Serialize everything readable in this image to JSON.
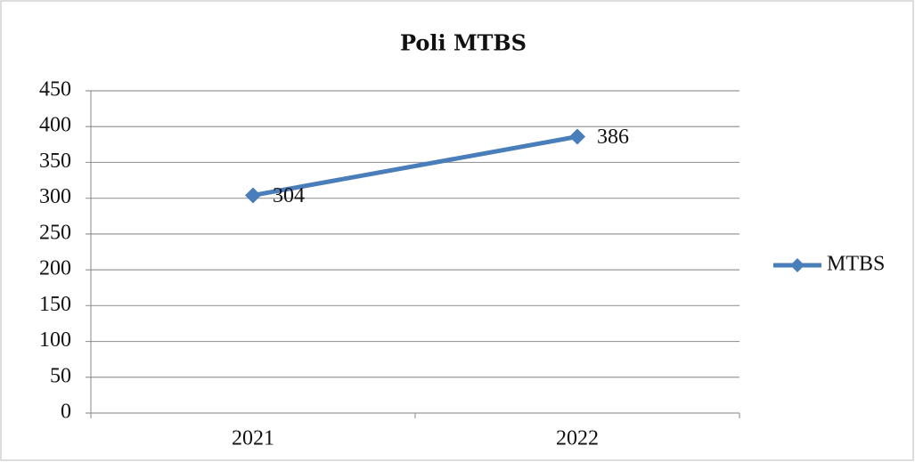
{
  "chart_data": {
    "type": "line",
    "title": "Poli MTBS",
    "categories": [
      "2021",
      "2022"
    ],
    "series": [
      {
        "name": "MTBS",
        "color": "#4a7ebb",
        "values": [
          304,
          386
        ]
      }
    ],
    "ylim": [
      0,
      450
    ],
    "yticks": [
      0,
      50,
      100,
      150,
      200,
      250,
      300,
      350,
      400,
      450
    ],
    "grid": true,
    "legend": "right",
    "data_labels": true
  }
}
